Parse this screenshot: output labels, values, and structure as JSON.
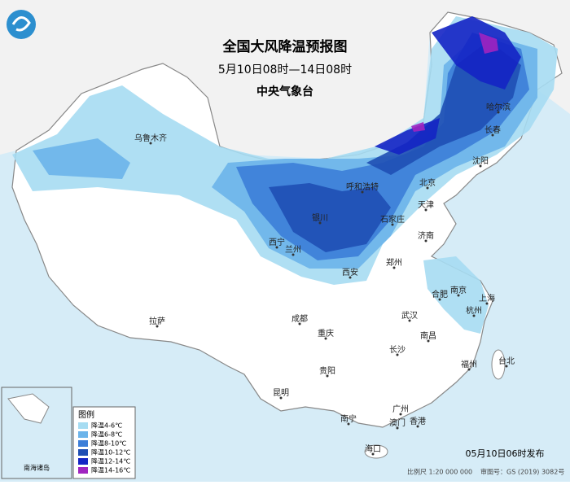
{
  "header": {
    "title": "全国大风降温预报图",
    "time_range": "5月10日08时—14日08时",
    "issuer": "中央气象台"
  },
  "cities": [
    "乌鲁木齐",
    "哈尔滨",
    "长春",
    "沈阳",
    "呼和浩特",
    "北京",
    "天津",
    "石家庄",
    "银川",
    "济南",
    "西宁",
    "兰州",
    "郑州",
    "西安",
    "合肥",
    "南京",
    "上海",
    "成都",
    "武汉",
    "杭州",
    "拉萨",
    "重庆",
    "南昌",
    "长沙",
    "贵阳",
    "福州",
    "台北",
    "昆明",
    "广州",
    "南宁",
    "香港",
    "澳门",
    "海口"
  ],
  "legend": {
    "title": "图例",
    "items": [
      {
        "label": "降温4-6℃",
        "color": "#a6dcf2"
      },
      {
        "label": "降温6-8℃",
        "color": "#6cb4ea"
      },
      {
        "label": "降温8-10℃",
        "color": "#3c7ed8"
      },
      {
        "label": "降温10-12℃",
        "color": "#1f4fb4"
      },
      {
        "label": "降温12-14℃",
        "color": "#1424c4"
      },
      {
        "label": "降温14-16℃",
        "color": "#a024c0"
      }
    ]
  },
  "inset": {
    "label": "南海诸岛"
  },
  "footer": {
    "issued": "05月10日06时发布",
    "scale": "比例尺 1:20 000 000",
    "approval": "审图号：GS (2019) 3082号"
  }
}
